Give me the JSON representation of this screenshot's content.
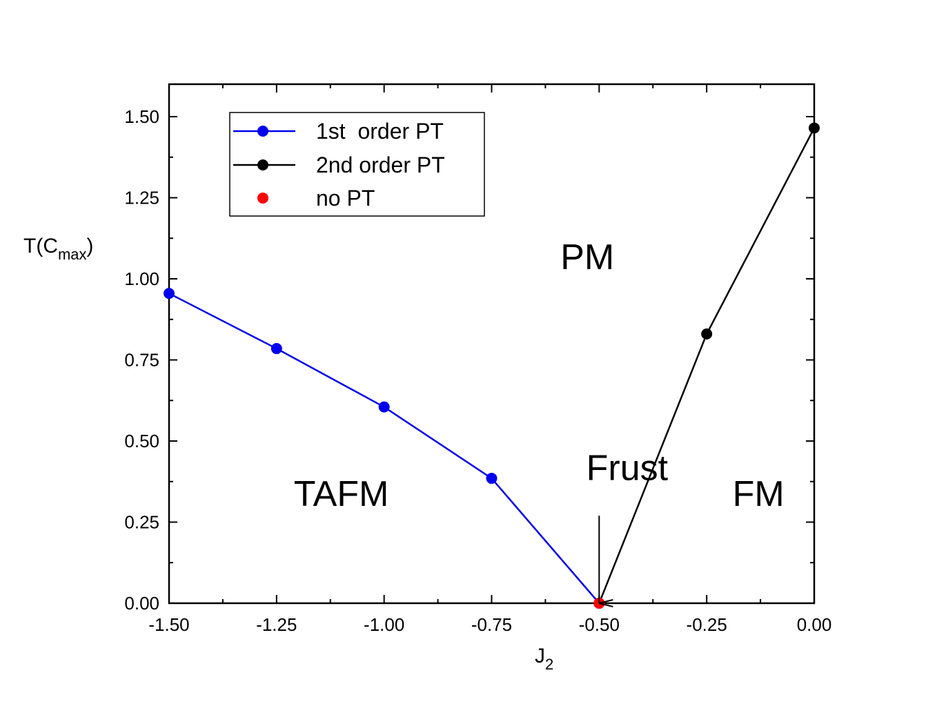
{
  "chart_data": {
    "type": "line",
    "xlabel": "J",
    "xlabel_sub": "2",
    "ylabel": "T(C",
    "ylabel_sub": "max",
    "ylabel_end": ")",
    "xlim": [
      -1.5,
      0.0
    ],
    "ylim": [
      0.0,
      1.6
    ],
    "x_ticks": [
      -1.5,
      -1.25,
      -1.0,
      -0.75,
      -0.5,
      -0.25,
      0.0
    ],
    "x_tick_labels": [
      "-1.50",
      "-1.25",
      "-1.00",
      "-0.75",
      "-0.50",
      "-0.25",
      "0.00"
    ],
    "y_ticks": [
      0.0,
      0.25,
      0.5,
      0.75,
      1.0,
      1.25,
      1.5
    ],
    "y_tick_labels": [
      "0.00",
      "0.25",
      "0.50",
      "0.75",
      "1.00",
      "1.25",
      "1.50"
    ],
    "grid": false,
    "legend_position": "top-left",
    "series": [
      {
        "name": "1st  order PT",
        "color": "#0000ee",
        "style": "line+marker",
        "x": [
          -1.5,
          -1.25,
          -1.0,
          -0.75,
          -0.5
        ],
        "y": [
          0.955,
          0.785,
          0.605,
          0.385,
          0.0
        ]
      },
      {
        "name": "2nd order PT",
        "color": "#000000",
        "style": "line+marker",
        "x": [
          -0.5,
          -0.25,
          0.0
        ],
        "y": [
          0.0,
          0.83,
          1.465
        ]
      },
      {
        "name": "no PT",
        "color": "#ff0000",
        "style": "marker",
        "x": [
          -0.5
        ],
        "y": [
          0.0
        ]
      }
    ],
    "annotations": [
      {
        "text": "PM",
        "x": -0.59,
        "y": 1.03
      },
      {
        "text": "TAFM",
        "x": -1.21,
        "y": 0.3
      },
      {
        "text": "Frust",
        "x": -0.53,
        "y": 0.38
      },
      {
        "text": "FM",
        "x": -0.19,
        "y": 0.3
      }
    ],
    "arrow": {
      "x": -0.5,
      "y_from": 0.27,
      "y_to": 0.0
    }
  }
}
